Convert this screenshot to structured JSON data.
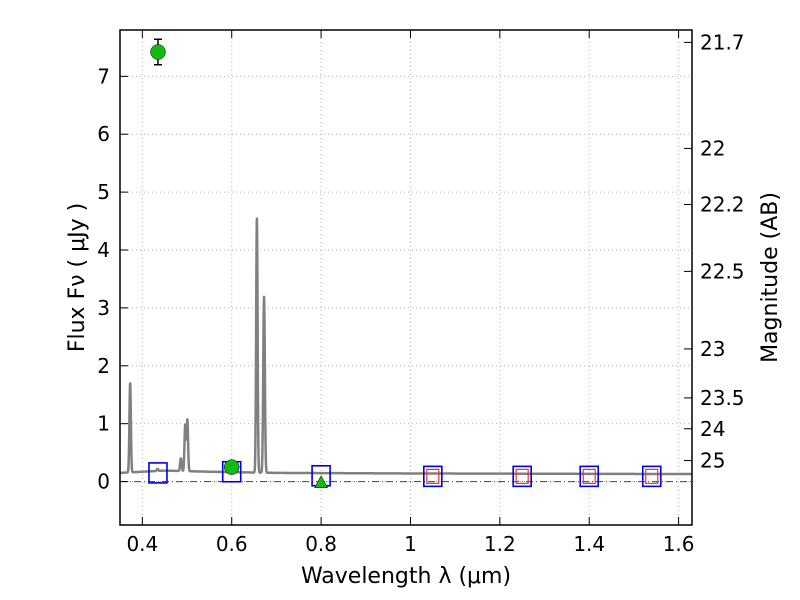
{
  "chart_data": {
    "type": "scatter",
    "xlabel": "Wavelength  λ (μm)",
    "ylabel": "Flux  Fν  ( μJy )",
    "y2label": "Magnitude (AB)",
    "xlim": [
      0.35,
      1.63
    ],
    "ylim": [
      -0.75,
      7.8
    ],
    "x_ticks": [
      {
        "value": 0.4,
        "label": "0.4"
      },
      {
        "value": 0.6,
        "label": "0.6"
      },
      {
        "value": 0.8,
        "label": "0.8"
      },
      {
        "value": 1.0,
        "label": "1"
      },
      {
        "value": 1.2,
        "label": "1.2"
      },
      {
        "value": 1.4,
        "label": "1.4"
      },
      {
        "value": 1.6,
        "label": "1.6"
      }
    ],
    "y_ticks": [
      {
        "value": 0,
        "label": "0"
      },
      {
        "value": 1,
        "label": "1"
      },
      {
        "value": 2,
        "label": "2"
      },
      {
        "value": 3,
        "label": "3"
      },
      {
        "value": 4,
        "label": "4"
      },
      {
        "value": 5,
        "label": "5"
      },
      {
        "value": 6,
        "label": "6"
      },
      {
        "value": 7,
        "label": "7"
      }
    ],
    "y2_ticks": [
      {
        "mag": 21.7,
        "label": "21.7"
      },
      {
        "mag": 22.0,
        "label": "22"
      },
      {
        "mag": 22.2,
        "label": "22.2"
      },
      {
        "mag": 22.5,
        "label": "22.5"
      },
      {
        "mag": 23.0,
        "label": "23"
      },
      {
        "mag": 23.5,
        "label": "23.5"
      },
      {
        "mag": 24.0,
        "label": "24"
      },
      {
        "mag": 25.0,
        "label": "25"
      }
    ],
    "grid": true,
    "zero_line": true,
    "colors": {
      "model": "#808080",
      "observed": "#11bb11",
      "model_band": "#0000dd",
      "upper_limit": "#ee3333",
      "errorbar": "#000000"
    },
    "model_spectrum": {
      "baseline": [
        [
          0.35,
          0.15
        ],
        [
          0.45,
          0.19
        ],
        [
          0.55,
          0.17
        ],
        [
          0.7,
          0.15
        ],
        [
          1.0,
          0.14
        ],
        [
          1.63,
          0.13
        ]
      ],
      "lines": [
        {
          "center": 0.3727,
          "peak": 1.7
        },
        {
          "center": 0.434,
          "peak": 0.22
        },
        {
          "center": 0.4861,
          "peak": 0.4
        },
        {
          "center": 0.4959,
          "peak": 0.97
        },
        {
          "center": 0.5007,
          "peak": 1.07
        },
        {
          "center": 0.6563,
          "peak": 4.55
        },
        {
          "center": 0.6716,
          "peak": 1.88
        },
        {
          "center": 0.6731,
          "peak": 1.82
        }
      ]
    },
    "observed_points": [
      {
        "x": 0.435,
        "y": 7.42,
        "yerr": 0.22,
        "marker": "circle"
      },
      {
        "x": 0.6,
        "y": 0.25,
        "yerr": 0.04,
        "marker": "circle"
      },
      {
        "x": 0.8,
        "y": -0.02,
        "yerr": 0.0,
        "marker": "triangle"
      }
    ],
    "model_band_points": [
      {
        "x": 0.435,
        "y": 0.15
      },
      {
        "x": 0.6,
        "y": 0.17
      },
      {
        "x": 0.8,
        "y": 0.1
      },
      {
        "x": 1.05,
        "y": 0.09
      },
      {
        "x": 1.25,
        "y": 0.09
      },
      {
        "x": 1.4,
        "y": 0.09
      },
      {
        "x": 1.54,
        "y": 0.09
      }
    ],
    "upper_limit_points": [
      {
        "x": 1.05,
        "y": 0.09
      },
      {
        "x": 1.25,
        "y": 0.09
      },
      {
        "x": 1.4,
        "y": 0.09
      },
      {
        "x": 1.54,
        "y": 0.09
      }
    ]
  }
}
